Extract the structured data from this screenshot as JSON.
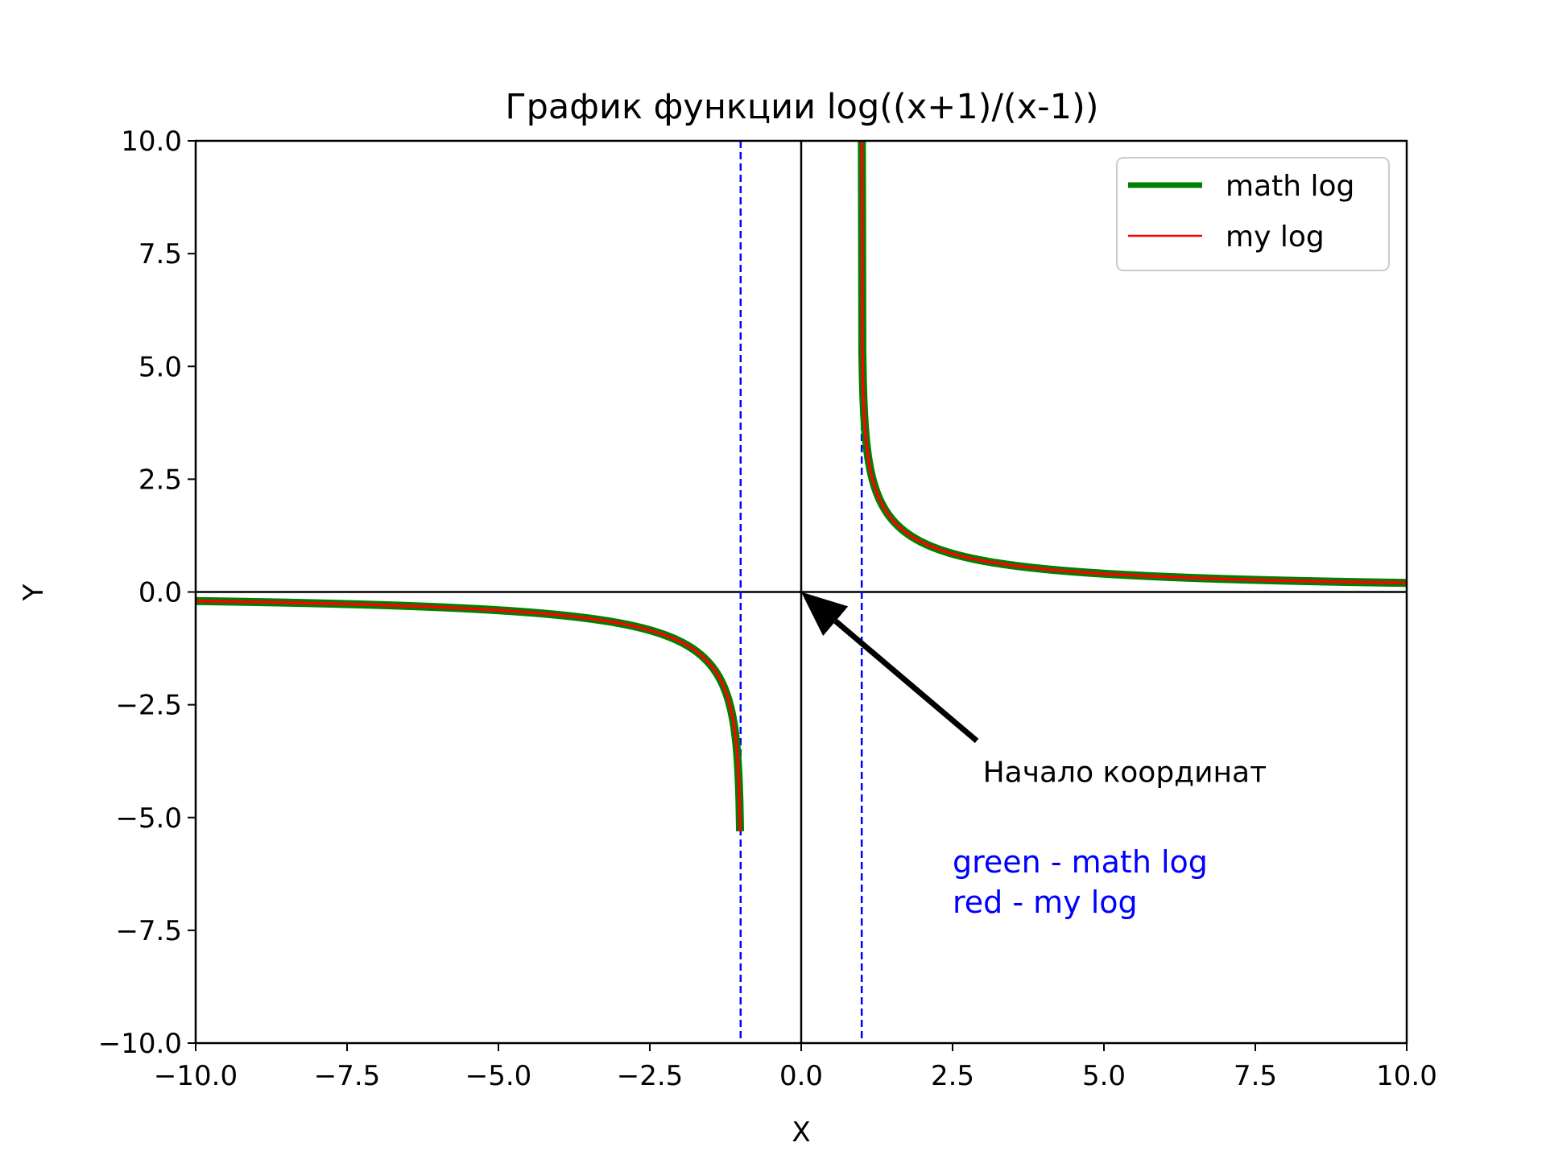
{
  "chart_data": {
    "type": "line",
    "title": "График функции log((x+1)/(x-1))",
    "xlabel": "X",
    "ylabel": "Y",
    "xlim": [
      -10,
      10
    ],
    "ylim": [
      -10,
      10
    ],
    "grid": false,
    "legend_position": "top-right",
    "x_ticks": [
      -10,
      -7.5,
      -5,
      -2.5,
      0,
      2.5,
      5,
      7.5,
      10
    ],
    "y_ticks": [
      -10,
      -7.5,
      -5,
      -2.5,
      0,
      2.5,
      5,
      7.5,
      10
    ],
    "x_tick_labels": [
      "−10.0",
      "−7.5",
      "−5.0",
      "−2.5",
      "0.0",
      "2.5",
      "5.0",
      "7.5",
      "10.0"
    ],
    "y_tick_labels": [
      "−10.0",
      "−7.5",
      "−5.0",
      "−2.5",
      "0.0",
      "2.5",
      "5.0",
      "7.5",
      "10.0"
    ],
    "function": "log((x+1)/(x-1))",
    "series": [
      {
        "name": "math log",
        "color": "#008000",
        "style": "solid-thick",
        "segments": [
          {
            "x_start": -10,
            "x_end": -1
          },
          {
            "x_start": 1,
            "x_end": 10
          }
        ]
      },
      {
        "name": "my log",
        "color": "#ff0000",
        "style": "solid-thin",
        "segments": [
          {
            "x_start": -10,
            "x_end": -1
          },
          {
            "x_start": 1,
            "x_end": 10
          }
        ]
      }
    ],
    "asymptotes": [
      {
        "x": -1,
        "color": "#0000ff",
        "style": "dashed"
      },
      {
        "x": 1,
        "color": "#0000ff",
        "style": "dashed"
      }
    ],
    "reference_lines": {
      "x_axis_at_y": 0,
      "y_axis_at_x": 0,
      "color": "#000000"
    },
    "annotations": [
      {
        "text": "Начало координат",
        "arrow_to": [
          0,
          0
        ],
        "text_at": [
          3,
          -4
        ],
        "color": "#000000"
      },
      {
        "text": "green - math log",
        "at": [
          2.5,
          -6
        ],
        "color": "#0000ff"
      },
      {
        "text": "red - my log",
        "at": [
          2.5,
          -6.9
        ],
        "color": "#0000ff"
      }
    ]
  }
}
